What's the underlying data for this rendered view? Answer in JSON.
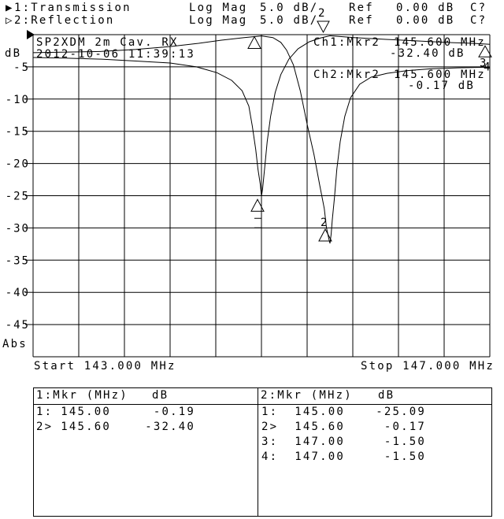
{
  "colors": {
    "foreground": "#000000",
    "background": "#ffffff"
  },
  "header": {
    "trace1": {
      "indicator": "▶",
      "label": "1:Transmission",
      "format": "Log Mag",
      "scale": "5.0 dB/",
      "ref_label": "Ref",
      "ref_value": "0.00 dB",
      "cal_status": "C?"
    },
    "trace2": {
      "indicator": "▷",
      "label": "2:Reflection",
      "format": "Log Mag",
      "scale": "5.0 dB/",
      "ref_label": "Ref",
      "ref_value": "0.00 dB",
      "cal_status": "C?"
    }
  },
  "plot": {
    "title": "SP2XDM 2m Cav. RX",
    "timestamp": "2012-10-06 11:39:13",
    "y_axis_label": "dB",
    "y_axis_bottom_label": "Abs",
    "start_label": "Start 143.000 MHz",
    "stop_label": "Stop 147.000 MHz",
    "readouts": {
      "ch1": {
        "label": "Ch1:Mkr2",
        "freq": "145.600 MHz",
        "value": "-32.40 dB"
      },
      "ch2": {
        "label": "Ch2:Mkr2",
        "freq": "145.600 MHz",
        "value": "-0.17 dB"
      }
    }
  },
  "chart_data": {
    "type": "line",
    "xlim": [
      143.0,
      147.0
    ],
    "ylim": [
      -50,
      0
    ],
    "x_divisions": 10,
    "y_divisions": 10,
    "scale_per_division_db": 5.0,
    "yticks": [
      -5,
      -10,
      -15,
      -20,
      -25,
      -30,
      -35,
      -40,
      -45
    ],
    "grid": true,
    "series": [
      {
        "name": "Transmission",
        "channel": 1,
        "points": [
          [
            143.0,
            -2.8
          ],
          [
            143.3,
            -2.7
          ],
          [
            143.6,
            -2.6
          ],
          [
            143.9,
            -2.3
          ],
          [
            144.2,
            -1.85
          ],
          [
            144.45,
            -1.35
          ],
          [
            144.65,
            -0.85
          ],
          [
            144.85,
            -0.45
          ],
          [
            145.0,
            -0.2
          ],
          [
            145.1,
            -0.45
          ],
          [
            145.17,
            -1.2
          ],
          [
            145.22,
            -2.4
          ],
          [
            145.28,
            -4.7
          ],
          [
            145.34,
            -8.7
          ],
          [
            145.4,
            -13.9
          ],
          [
            145.46,
            -18.6
          ],
          [
            145.51,
            -23.3
          ],
          [
            145.55,
            -27.0
          ],
          [
            145.57,
            -30.0
          ],
          [
            145.59,
            -31.7
          ],
          [
            145.6,
            -32.4
          ],
          [
            145.61,
            -31.0
          ],
          [
            145.62,
            -28.8
          ],
          [
            145.64,
            -25.2
          ],
          [
            145.66,
            -20.9
          ],
          [
            145.69,
            -16.6
          ],
          [
            145.73,
            -12.7
          ],
          [
            145.78,
            -9.8
          ],
          [
            145.86,
            -7.7
          ],
          [
            145.96,
            -6.6
          ],
          [
            146.1,
            -6.0
          ],
          [
            146.27,
            -5.6
          ],
          [
            146.48,
            -5.3
          ],
          [
            146.72,
            -5.15
          ],
          [
            147.0,
            -5.05
          ]
        ]
      },
      {
        "name": "Reflection",
        "channel": 2,
        "points": [
          [
            143.0,
            -3.55
          ],
          [
            143.3,
            -3.65
          ],
          [
            143.6,
            -3.8
          ],
          [
            143.9,
            -4.1
          ],
          [
            144.2,
            -4.4
          ],
          [
            144.43,
            -5.0
          ],
          [
            144.61,
            -5.9
          ],
          [
            144.74,
            -7.1
          ],
          [
            144.83,
            -8.7
          ],
          [
            144.89,
            -11.1
          ],
          [
            144.92,
            -14.2
          ],
          [
            144.95,
            -17.8
          ],
          [
            144.97,
            -20.9
          ],
          [
            144.99,
            -23.3
          ],
          [
            145.0,
            -25.09
          ],
          [
            145.01,
            -24.0
          ],
          [
            145.03,
            -20.3
          ],
          [
            145.05,
            -16.6
          ],
          [
            145.08,
            -12.7
          ],
          [
            145.12,
            -9.0
          ],
          [
            145.17,
            -6.2
          ],
          [
            145.24,
            -3.8
          ],
          [
            145.32,
            -2.2
          ],
          [
            145.42,
            -1.1
          ],
          [
            145.52,
            -0.5
          ],
          [
            145.6,
            -0.17
          ],
          [
            145.7,
            -0.3
          ],
          [
            145.81,
            -0.45
          ],
          [
            146.09,
            -0.73
          ],
          [
            146.37,
            -0.98
          ],
          [
            146.64,
            -1.22
          ],
          [
            146.85,
            -1.34
          ],
          [
            147.0,
            -1.5
          ]
        ]
      }
    ],
    "markers": [
      {
        "id": "1",
        "channel": 1,
        "freq": 145.0,
        "db": -0.19,
        "style": "top"
      },
      {
        "id": "2",
        "channel": 2,
        "freq": 145.6,
        "db": -0.17,
        "style": "top-label"
      },
      {
        "id": "1",
        "channel": 2,
        "freq": 145.0,
        "db": -25.09,
        "style": "notch-dashes"
      },
      {
        "id": "2",
        "channel": 1,
        "freq": 145.6,
        "db": -32.4,
        "style": "notch-label"
      },
      {
        "id": "3",
        "channel": 2,
        "freq": 147.0,
        "db": -1.5,
        "style": "edge"
      },
      {
        "id": "4",
        "channel": 2,
        "freq": 147.0,
        "db": -1.5,
        "style": "edge2"
      }
    ]
  },
  "tables": {
    "left": {
      "title": "1:Mkr (MHz)",
      "unit": "dB",
      "rows": [
        {
          "n": "1:",
          "f": "145.00",
          "v": "-0.19"
        },
        {
          "n": "2>",
          "f": "145.60",
          "v": "-32.40"
        }
      ]
    },
    "right": {
      "title": "2:Mkr (MHz)",
      "unit": "dB",
      "rows": [
        {
          "n": "1:",
          "f": "145.00",
          "v": "-25.09"
        },
        {
          "n": "2>",
          "f": "145.60",
          "v": "-0.17"
        },
        {
          "n": "3:",
          "f": "147.00",
          "v": "-1.50"
        },
        {
          "n": "4:",
          "f": "147.00",
          "v": "-1.50"
        }
      ]
    }
  }
}
